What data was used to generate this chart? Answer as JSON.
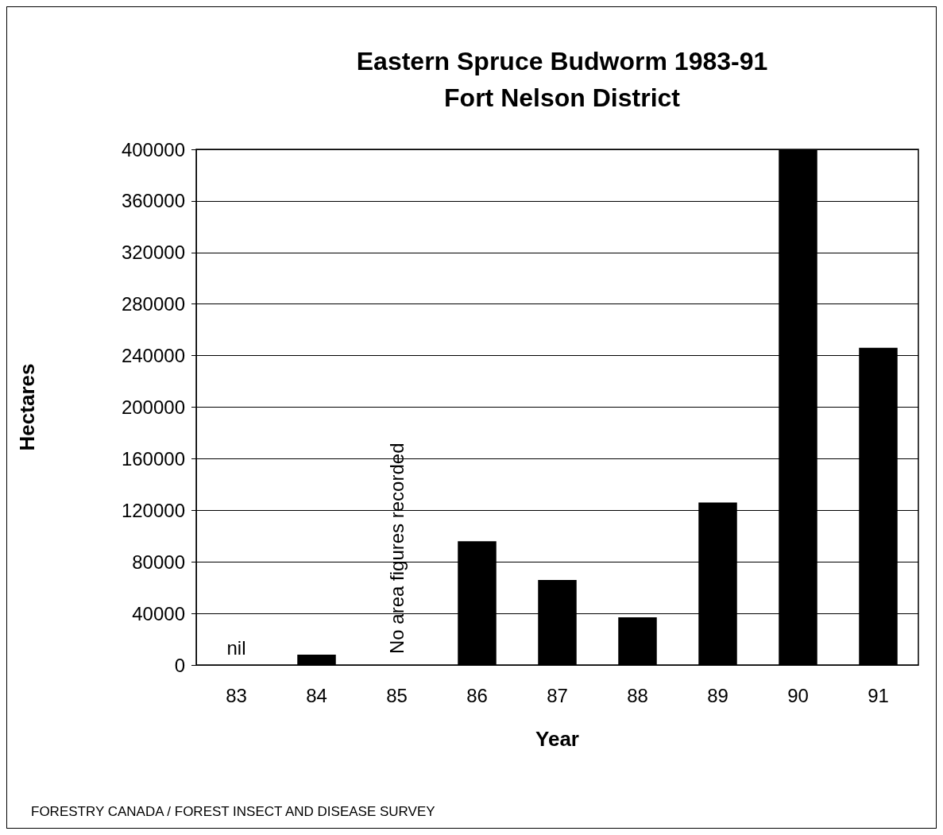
{
  "chart_data": {
    "type": "bar",
    "title": "Eastern Spruce Budworm 1983-91\nFort Nelson District",
    "xlabel": "Year",
    "ylabel": "Hectares",
    "categories": [
      "83",
      "84",
      "85",
      "86",
      "87",
      "88",
      "89",
      "90",
      "91"
    ],
    "values": [
      0,
      8000,
      null,
      96000,
      66000,
      37000,
      126000,
      400000,
      246000
    ],
    "color": "#000000",
    "ylim": [
      0,
      400000
    ],
    "yticks": [
      0,
      40000,
      80000,
      120000,
      160000,
      200000,
      240000,
      280000,
      320000,
      360000,
      400000
    ],
    "grid": "y",
    "annotations": [
      {
        "text": "nil",
        "x": "83",
        "y": 0
      },
      "No area figures recorded",
      "FORESTRY CANADA / FOREST INSECT AND DISEASE SURVEY"
    ]
  }
}
